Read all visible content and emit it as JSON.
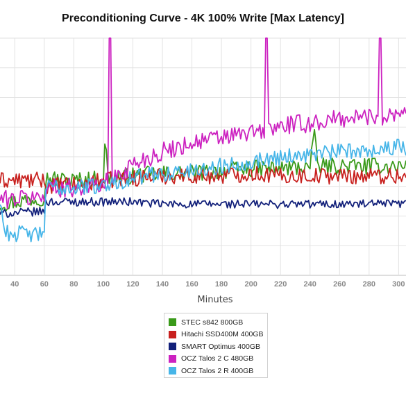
{
  "chart_data": {
    "type": "line",
    "title": "Preconditioning Curve - 4K 100% Write [Max Latency]",
    "xlabel": "Minutes",
    "ylabel": "",
    "xlim": [
      30,
      305
    ],
    "ylim": [
      0,
      1
    ],
    "x_ticks": [
      40,
      60,
      80,
      100,
      120,
      140,
      160,
      180,
      200,
      220,
      240,
      260,
      280,
      300
    ],
    "grid": true,
    "legend_position": "bottom",
    "series": [
      {
        "name": "STEC s842 800GB",
        "color": "#3a9a1a",
        "x": [
          30,
          60,
          61,
          80,
          100,
          101,
          102,
          103,
          120,
          140,
          160,
          180,
          200,
          220,
          240,
          243,
          244,
          245,
          260,
          280,
          300,
          305
        ],
        "y": [
          0.3,
          0.33,
          0.41,
          0.4,
          0.41,
          0.53,
          0.53,
          0.41,
          0.42,
          0.43,
          0.43,
          0.44,
          0.45,
          0.45,
          0.46,
          0.58,
          0.58,
          0.46,
          0.46,
          0.46,
          0.46,
          0.46
        ]
      },
      {
        "name": "Hitachi SSD400M 400GB",
        "color": "#c8201e",
        "x": [
          30,
          60,
          61,
          80,
          100,
          120,
          140,
          160,
          180,
          200,
          220,
          240,
          260,
          280,
          300,
          305
        ],
        "y": [
          0.4,
          0.4,
          0.38,
          0.38,
          0.4,
          0.41,
          0.42,
          0.42,
          0.42,
          0.43,
          0.42,
          0.42,
          0.42,
          0.42,
          0.42,
          0.42
        ]
      },
      {
        "name": "SMART Optimus 400GB",
        "color": "#12207a",
        "x": [
          30,
          60,
          61,
          80,
          100,
          120,
          140,
          160,
          180,
          200,
          220,
          240,
          260,
          280,
          300,
          305
        ],
        "y": [
          0.26,
          0.27,
          0.31,
          0.31,
          0.31,
          0.31,
          0.3,
          0.3,
          0.3,
          0.3,
          0.3,
          0.3,
          0.3,
          0.3,
          0.3,
          0.3
        ]
      },
      {
        "name": "OCZ Talos 2 C 480GB",
        "color": "#cc22c0",
        "x": [
          30,
          60,
          61,
          80,
          100,
          103,
          104,
          105,
          106,
          120,
          140,
          160,
          180,
          200,
          209,
          210,
          211,
          212,
          220,
          240,
          260,
          280,
          286,
          287,
          288,
          289,
          300,
          305
        ],
        "y": [
          0.32,
          0.33,
          0.37,
          0.37,
          0.38,
          0.4,
          1.0,
          1.0,
          0.4,
          0.47,
          0.52,
          0.56,
          0.58,
          0.6,
          0.61,
          1.0,
          1.0,
          0.61,
          0.63,
          0.64,
          0.66,
          0.67,
          0.67,
          1.0,
          1.0,
          0.67,
          0.69,
          0.7
        ]
      },
      {
        "name": "OCZ Talos 2 R 400GB",
        "color": "#46b5e8",
        "x": [
          30,
          32,
          33,
          58,
          60,
          61,
          80,
          100,
          120,
          140,
          160,
          180,
          200,
          220,
          240,
          260,
          280,
          300,
          305
        ],
        "y": [
          0.3,
          0.26,
          0.18,
          0.17,
          0.2,
          0.37,
          0.37,
          0.38,
          0.41,
          0.43,
          0.44,
          0.46,
          0.48,
          0.5,
          0.51,
          0.52,
          0.53,
          0.54,
          0.54
        ]
      }
    ]
  }
}
